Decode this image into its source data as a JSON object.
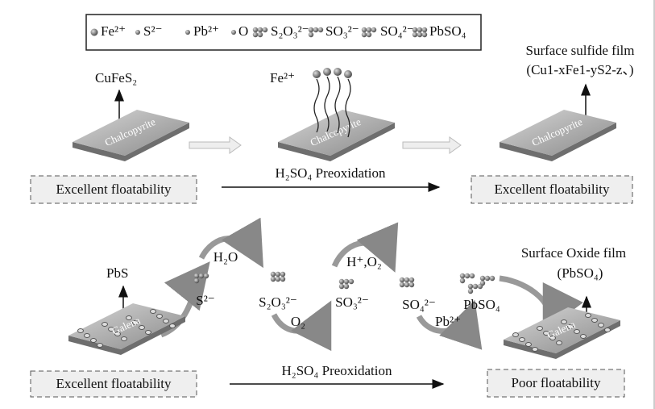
{
  "legend": [
    "Fe²⁺",
    "S²⁻",
    "Pb²⁺",
    "O",
    "S₂O₃²⁻",
    "SO₃²⁻",
    "SO₄²⁻",
    "PbSO₄"
  ],
  "top": {
    "reactant": "CuFeS₂",
    "plate_labels": [
      "Chalcopyrite",
      "Chalcopyrite",
      "Chalcopyrite"
    ],
    "released_ion": "Fe²⁺",
    "film_title": "Surface sulfide film",
    "film_formula": "(Cu1-xFe1-yS2-z、)",
    "process": "H₂SO₄ Preoxidation",
    "left_result": "Excellent floatability",
    "right_result": "Excellent floatability"
  },
  "bottom": {
    "reactant": "PbS",
    "plate_labels": [
      "Galena",
      "Galena"
    ],
    "steps": [
      "H₂O",
      "O₂",
      "H⁺,O₂",
      "Pb²⁺"
    ],
    "species": [
      "S²⁻",
      "S₂O₃²⁻",
      "SO₃²⁻",
      "SO₄²⁻",
      "PbSO₄"
    ],
    "film_title": "Surface Oxide film",
    "film_formula": "(PbSO₄)",
    "process": "H₂SO₄ Preoxidation",
    "left_result": "Excellent floatability",
    "right_result": "Poor floatability"
  }
}
